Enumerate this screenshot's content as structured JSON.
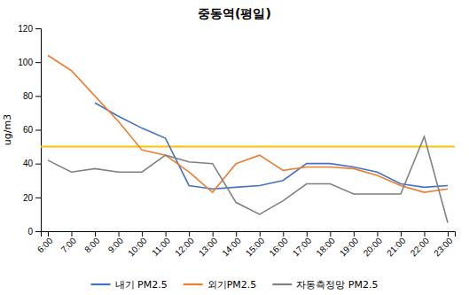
{
  "chart_data": {
    "type": "line",
    "title": "중동역(평일)",
    "y_label": "ug/m3",
    "categories": [
      "6:00",
      "7:00",
      "8:00",
      "9:00",
      "10:00",
      "11:00",
      "12:00",
      "13:00",
      "14:00",
      "15:00",
      "16:00",
      "17:00",
      "18:00",
      "19:00",
      "20:00",
      "21:00",
      "22:00",
      "23:00"
    ],
    "series": [
      {
        "name": "내기 PM2.5",
        "color": "#4472C4",
        "values": [
          null,
          null,
          76,
          68,
          61,
          55,
          27,
          25,
          26,
          27,
          30,
          40,
          40,
          38,
          35,
          28,
          26,
          27
        ]
      },
      {
        "name": "외기PM2.5",
        "color": "#ED7D31",
        "values": [
          104,
          95,
          80,
          65,
          48,
          45,
          35,
          23,
          40,
          45,
          36,
          38,
          38,
          37,
          33,
          27,
          23,
          25
        ]
      },
      {
        "name": "자동측정망 PM2.5",
        "color": "#808080",
        "values": [
          42,
          35,
          37,
          35,
          35,
          45,
          41,
          40,
          17,
          10,
          18,
          28,
          28,
          22,
          22,
          22,
          56,
          5
        ]
      }
    ],
    "threshold": {
      "value": 50,
      "color": "#FFC000"
    },
    "ylim": [
      0,
      120
    ],
    "yticks": [
      0,
      20,
      40,
      60,
      80,
      100,
      120
    ],
    "grid": false,
    "legend": "bottom"
  }
}
